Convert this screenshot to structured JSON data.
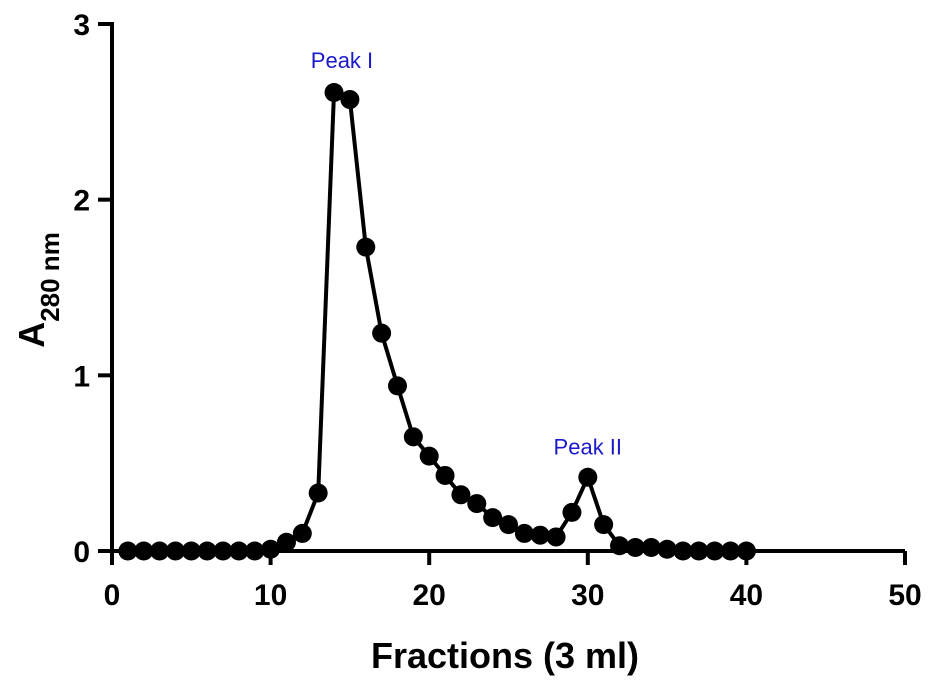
{
  "chart_data": {
    "type": "line",
    "title": "",
    "xlabel": "Fractions (3 ml)",
    "ylabel": {
      "main": "A",
      "subscript": "280 nm"
    },
    "xlim": [
      0,
      50
    ],
    "ylim": [
      0,
      3
    ],
    "xticks": [
      "0",
      "10",
      "20",
      "30",
      "40",
      "50"
    ],
    "yticks": [
      "0",
      "1",
      "2",
      "3"
    ],
    "grid": false,
    "legend": "none",
    "marker": "filled-circle",
    "line_color": "#000000",
    "annotation_color": "#1a1acc",
    "series": [
      {
        "x": [
          1,
          2,
          3,
          4,
          5,
          6,
          7,
          8,
          9,
          10,
          11,
          12,
          13,
          14,
          15,
          16,
          17,
          18,
          19,
          20,
          21,
          22,
          23,
          24,
          25,
          26,
          27,
          28,
          29,
          30,
          31,
          32,
          33,
          34,
          35,
          36,
          37,
          38,
          39,
          40
        ],
        "y": [
          0,
          0,
          0,
          0,
          0,
          0,
          0,
          0,
          0,
          0.01,
          0.05,
          0.1,
          0.33,
          2.61,
          2.57,
          1.73,
          1.24,
          0.94,
          0.65,
          0.54,
          0.43,
          0.32,
          0.27,
          0.19,
          0.15,
          0.1,
          0.09,
          0.08,
          0.22,
          0.42,
          0.15,
          0.03,
          0.02,
          0.02,
          0.01,
          0,
          0,
          0,
          0,
          0
        ]
      }
    ],
    "annotations": [
      {
        "text": "Peak I",
        "x": 14.5,
        "y": 2.75
      },
      {
        "text": "Peak II",
        "x": 30,
        "y": 0.55
      }
    ]
  }
}
